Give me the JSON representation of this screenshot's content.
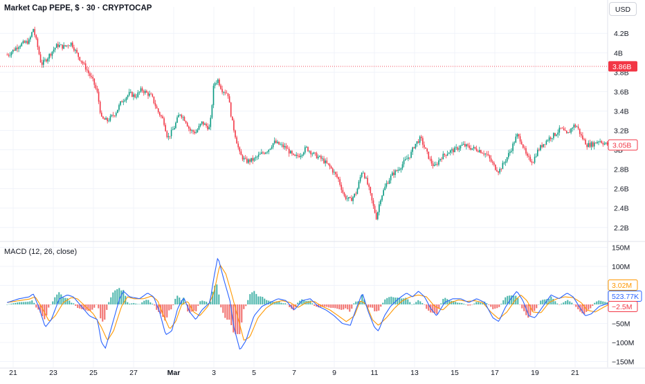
{
  "header": {
    "title": "Market Cap PEPE, $ · 30 · CRYPTOCAP",
    "currency_button": "USD"
  },
  "chart_data": [
    {
      "type": "candlestick",
      "title": "Market Cap PEPE, $ · 30 · CRYPTOCAP",
      "y_unit": "USD",
      "ylim": [
        2.12,
        4.33
      ],
      "y_ticks": [
        {
          "value": 4.2,
          "label": "4.2B"
        },
        {
          "value": 4.0,
          "label": "4B"
        },
        {
          "value": 3.8,
          "label": "3.8B"
        },
        {
          "value": 3.6,
          "label": "3.6B"
        },
        {
          "value": 3.4,
          "label": "3.4B"
        },
        {
          "value": 3.2,
          "label": "3.2B"
        },
        {
          "value": 3.0,
          "label": "3B"
        },
        {
          "value": 2.8,
          "label": "2.8B"
        },
        {
          "value": 2.6,
          "label": "2.6B"
        },
        {
          "value": 2.4,
          "label": "2.4B"
        },
        {
          "value": 2.2,
          "label": "2.2B"
        }
      ],
      "x_ticks": [
        {
          "x": 0,
          "label": "21"
        },
        {
          "x": 2,
          "label": "23"
        },
        {
          "x": 4,
          "label": "25"
        },
        {
          "x": 6,
          "label": "27"
        },
        {
          "x": 8,
          "label": "Mar"
        },
        {
          "x": 10,
          "label": "3"
        },
        {
          "x": 12,
          "label": "5"
        },
        {
          "x": 14,
          "label": "7"
        },
        {
          "x": 16,
          "label": "9"
        },
        {
          "x": 18,
          "label": "11"
        },
        {
          "x": 20,
          "label": "13"
        },
        {
          "x": 22,
          "label": "15"
        },
        {
          "x": 24,
          "label": "17"
        },
        {
          "x": 26,
          "label": "19"
        },
        {
          "x": 28,
          "label": "21"
        }
      ],
      "x_range": [
        -0.3,
        29.9
      ],
      "price_path": [
        [
          -0.25,
          3.98
        ],
        [
          0.3,
          4.08
        ],
        [
          0.8,
          4.12
        ],
        [
          1.0,
          4.25
        ],
        [
          1.2,
          4.08
        ],
        [
          1.4,
          3.88
        ],
        [
          1.6,
          3.92
        ],
        [
          2.0,
          4.03
        ],
        [
          2.2,
          4.08
        ],
        [
          2.5,
          4.06
        ],
        [
          2.9,
          4.1
        ],
        [
          3.2,
          3.98
        ],
        [
          3.6,
          3.85
        ],
        [
          4.0,
          3.7
        ],
        [
          4.2,
          3.58
        ],
        [
          4.4,
          3.32
        ],
        [
          4.7,
          3.3
        ],
        [
          5.1,
          3.38
        ],
        [
          5.4,
          3.5
        ],
        [
          5.8,
          3.58
        ],
        [
          6.1,
          3.55
        ],
        [
          6.4,
          3.62
        ],
        [
          6.9,
          3.55
        ],
        [
          7.2,
          3.4
        ],
        [
          7.5,
          3.3
        ],
        [
          7.7,
          3.12
        ],
        [
          8.0,
          3.22
        ],
        [
          8.3,
          3.38
        ],
        [
          8.6,
          3.3
        ],
        [
          8.8,
          3.2
        ],
        [
          9.1,
          3.18
        ],
        [
          9.4,
          3.28
        ],
        [
          9.8,
          3.22
        ],
        [
          10.0,
          3.68
        ],
        [
          10.2,
          3.72
        ],
        [
          10.4,
          3.62
        ],
        [
          10.7,
          3.58
        ],
        [
          10.9,
          3.3
        ],
        [
          11.1,
          3.12
        ],
        [
          11.3,
          2.95
        ],
        [
          11.6,
          2.88
        ],
        [
          12.0,
          2.9
        ],
        [
          12.3,
          2.95
        ],
        [
          12.7,
          3.0
        ],
        [
          13.0,
          3.08
        ],
        [
          13.3,
          3.05
        ],
        [
          13.6,
          3.02
        ],
        [
          14.0,
          2.92
        ],
        [
          14.3,
          2.95
        ],
        [
          14.6,
          3.02
        ],
        [
          15.0,
          2.95
        ],
        [
          15.4,
          2.9
        ],
        [
          15.8,
          2.82
        ],
        [
          16.2,
          2.7
        ],
        [
          16.5,
          2.52
        ],
        [
          16.8,
          2.48
        ],
        [
          17.1,
          2.56
        ],
        [
          17.4,
          2.8
        ],
        [
          17.7,
          2.62
        ],
        [
          17.9,
          2.45
        ],
        [
          18.1,
          2.3
        ],
        [
          18.3,
          2.5
        ],
        [
          18.6,
          2.65
        ],
        [
          18.9,
          2.75
        ],
        [
          19.2,
          2.8
        ],
        [
          19.5,
          2.88
        ],
        [
          19.8,
          2.95
        ],
        [
          20.0,
          3.05
        ],
        [
          20.3,
          3.12
        ],
        [
          20.5,
          3.02
        ],
        [
          20.8,
          2.88
        ],
        [
          21.0,
          2.82
        ],
        [
          21.3,
          2.92
        ],
        [
          21.7,
          2.98
        ],
        [
          22.0,
          3.0
        ],
        [
          22.4,
          3.05
        ],
        [
          22.8,
          3.02
        ],
        [
          23.2,
          3.0
        ],
        [
          23.6,
          2.95
        ],
        [
          24.0,
          2.82
        ],
        [
          24.2,
          2.78
        ],
        [
          24.5,
          2.88
        ],
        [
          24.8,
          3.0
        ],
        [
          25.1,
          3.15
        ],
        [
          25.3,
          3.1
        ],
        [
          25.6,
          2.92
        ],
        [
          25.9,
          2.88
        ],
        [
          26.1,
          2.98
        ],
        [
          26.4,
          3.06
        ],
        [
          26.7,
          3.12
        ],
        [
          27.0,
          3.16
        ],
        [
          27.3,
          3.22
        ],
        [
          27.6,
          3.15
        ],
        [
          27.9,
          3.25
        ],
        [
          28.1,
          3.24
        ],
        [
          28.3,
          3.14
        ],
        [
          28.6,
          3.05
        ],
        [
          28.9,
          3.06
        ],
        [
          29.2,
          3.1
        ],
        [
          29.5,
          3.06
        ],
        [
          29.8,
          3.05
        ]
      ],
      "annotations": [
        {
          "value": 3.86,
          "label": "3.86B",
          "color": "#f23645",
          "dotted_line": true
        },
        {
          "value": 3.05,
          "label": "3.05B",
          "color": "#f23645",
          "outline": true
        }
      ],
      "up_color": "#089981",
      "down_color": "#f23645"
    },
    {
      "type": "macd",
      "title": "MACD (12, 26, close)",
      "ylim": [
        -160,
        160
      ],
      "y_ticks": [
        {
          "value": 150,
          "label": "150M"
        },
        {
          "value": 100,
          "label": "100M"
        },
        {
          "value": 50,
          "label": "50M"
        },
        {
          "value": -50,
          "label": "−50M"
        },
        {
          "value": -100,
          "label": "−100M"
        },
        {
          "value": -150,
          "label": "−150M"
        }
      ],
      "macd_path": [
        [
          -0.3,
          5
        ],
        [
          0.3,
          15
        ],
        [
          0.8,
          20
        ],
        [
          1.0,
          28
        ],
        [
          1.3,
          -10
        ],
        [
          1.6,
          -60
        ],
        [
          1.9,
          -40
        ],
        [
          2.3,
          15
        ],
        [
          2.7,
          25
        ],
        [
          3.0,
          20
        ],
        [
          3.4,
          -5
        ],
        [
          3.8,
          -30
        ],
        [
          4.2,
          -40
        ],
        [
          4.4,
          -100
        ],
        [
          4.6,
          -115
        ],
        [
          4.9,
          -60
        ],
        [
          5.3,
          15
        ],
        [
          5.5,
          35
        ],
        [
          5.8,
          20
        ],
        [
          6.3,
          15
        ],
        [
          6.7,
          30
        ],
        [
          7.0,
          20
        ],
        [
          7.3,
          -20
        ],
        [
          7.6,
          -80
        ],
        [
          7.9,
          -70
        ],
        [
          8.2,
          -10
        ],
        [
          8.5,
          18
        ],
        [
          8.8,
          -20
        ],
        [
          9.1,
          -40
        ],
        [
          9.4,
          -15
        ],
        [
          9.8,
          5
        ],
        [
          10.0,
          70
        ],
        [
          10.2,
          125
        ],
        [
          10.5,
          65
        ],
        [
          10.8,
          10
        ],
        [
          11.0,
          -60
        ],
        [
          11.3,
          -120
        ],
        [
          11.6,
          -95
        ],
        [
          12.0,
          -30
        ],
        [
          12.4,
          -5
        ],
        [
          12.8,
          5
        ],
        [
          13.2,
          15
        ],
        [
          13.6,
          10
        ],
        [
          14.0,
          -15
        ],
        [
          14.4,
          10
        ],
        [
          14.8,
          15
        ],
        [
          15.2,
          -5
        ],
        [
          15.6,
          -15
        ],
        [
          16.0,
          -30
        ],
        [
          16.4,
          -50
        ],
        [
          16.8,
          -55
        ],
        [
          17.1,
          -10
        ],
        [
          17.4,
          30
        ],
        [
          17.7,
          -20
        ],
        [
          18.0,
          -60
        ],
        [
          18.2,
          -70
        ],
        [
          18.5,
          -30
        ],
        [
          18.8,
          -5
        ],
        [
          19.2,
          15
        ],
        [
          19.6,
          30
        ],
        [
          19.9,
          20
        ],
        [
          20.2,
          35
        ],
        [
          20.5,
          20
        ],
        [
          20.8,
          -10
        ],
        [
          21.1,
          -30
        ],
        [
          21.5,
          5
        ],
        [
          21.9,
          15
        ],
        [
          22.3,
          15
        ],
        [
          22.7,
          5
        ],
        [
          23.1,
          15
        ],
        [
          23.5,
          5
        ],
        [
          23.9,
          -35
        ],
        [
          24.2,
          -45
        ],
        [
          24.5,
          -10
        ],
        [
          24.8,
          15
        ],
        [
          25.1,
          35
        ],
        [
          25.4,
          10
        ],
        [
          25.7,
          -30
        ],
        [
          26.0,
          -35
        ],
        [
          26.4,
          -5
        ],
        [
          26.8,
          25
        ],
        [
          27.2,
          15
        ],
        [
          27.6,
          30
        ],
        [
          27.9,
          20
        ],
        [
          28.2,
          -5
        ],
        [
          28.5,
          -30
        ],
        [
          28.8,
          -25
        ],
        [
          29.2,
          -5
        ],
        [
          29.6,
          2
        ],
        [
          29.8,
          0.52
        ]
      ],
      "signal_path": [
        [
          -0.3,
          5
        ],
        [
          0.3,
          10
        ],
        [
          0.8,
          14
        ],
        [
          1.1,
          20
        ],
        [
          1.4,
          -5
        ],
        [
          1.8,
          -45
        ],
        [
          2.1,
          -30
        ],
        [
          2.5,
          5
        ],
        [
          2.9,
          18
        ],
        [
          3.2,
          15
        ],
        [
          3.6,
          -5
        ],
        [
          4.0,
          -25
        ],
        [
          4.4,
          -60
        ],
        [
          4.7,
          -95
        ],
        [
          5.0,
          -70
        ],
        [
          5.4,
          -5
        ],
        [
          5.7,
          20
        ],
        [
          6.0,
          15
        ],
        [
          6.5,
          15
        ],
        [
          6.9,
          22
        ],
        [
          7.2,
          10
        ],
        [
          7.5,
          -30
        ],
        [
          7.8,
          -65
        ],
        [
          8.1,
          -45
        ],
        [
          8.4,
          0
        ],
        [
          8.7,
          8
        ],
        [
          9.0,
          -20
        ],
        [
          9.3,
          -30
        ],
        [
          9.7,
          -5
        ],
        [
          10.0,
          30
        ],
        [
          10.3,
          105
        ],
        [
          10.6,
          80
        ],
        [
          10.9,
          25
        ],
        [
          11.2,
          -35
        ],
        [
          11.5,
          -95
        ],
        [
          11.8,
          -85
        ],
        [
          12.2,
          -35
        ],
        [
          12.6,
          -10
        ],
        [
          13.0,
          5
        ],
        [
          13.4,
          10
        ],
        [
          13.8,
          5
        ],
        [
          14.2,
          -8
        ],
        [
          14.6,
          5
        ],
        [
          15.0,
          8
        ],
        [
          15.4,
          -5
        ],
        [
          15.8,
          -15
        ],
        [
          16.2,
          -30
        ],
        [
          16.6,
          -45
        ],
        [
          17.0,
          -30
        ],
        [
          17.3,
          10
        ],
        [
          17.6,
          0
        ],
        [
          17.9,
          -40
        ],
        [
          18.2,
          -55
        ],
        [
          18.6,
          -35
        ],
        [
          19.0,
          -10
        ],
        [
          19.4,
          10
        ],
        [
          19.8,
          20
        ],
        [
          20.2,
          25
        ],
        [
          20.6,
          20
        ],
        [
          21.0,
          -5
        ],
        [
          21.4,
          -15
        ],
        [
          21.8,
          5
        ],
        [
          22.2,
          12
        ],
        [
          22.6,
          8
        ],
        [
          23.0,
          10
        ],
        [
          23.4,
          5
        ],
        [
          23.8,
          -20
        ],
        [
          24.2,
          -38
        ],
        [
          24.6,
          -20
        ],
        [
          25.0,
          10
        ],
        [
          25.3,
          25
        ],
        [
          25.6,
          10
        ],
        [
          25.9,
          -20
        ],
        [
          26.3,
          -22
        ],
        [
          26.7,
          5
        ],
        [
          27.1,
          15
        ],
        [
          27.5,
          20
        ],
        [
          27.9,
          18
        ],
        [
          28.3,
          5
        ],
        [
          28.6,
          -15
        ],
        [
          29.0,
          -20
        ],
        [
          29.4,
          -8
        ],
        [
          29.8,
          3.02
        ]
      ],
      "histogram_last": -2.5,
      "latest_labels": [
        {
          "label": "3.02M",
          "value": 3.02,
          "color": "#ff9800"
        },
        {
          "label": "523.77K",
          "value": 0.52,
          "color": "#2962ff"
        },
        {
          "label": "−2.5M",
          "value": -2.5,
          "color": "#f23645"
        }
      ],
      "macd_color": "#2962ff",
      "signal_color": "#ff9800",
      "hist_up_color": "#26a69a",
      "hist_down_color": "#ef5350"
    }
  ]
}
